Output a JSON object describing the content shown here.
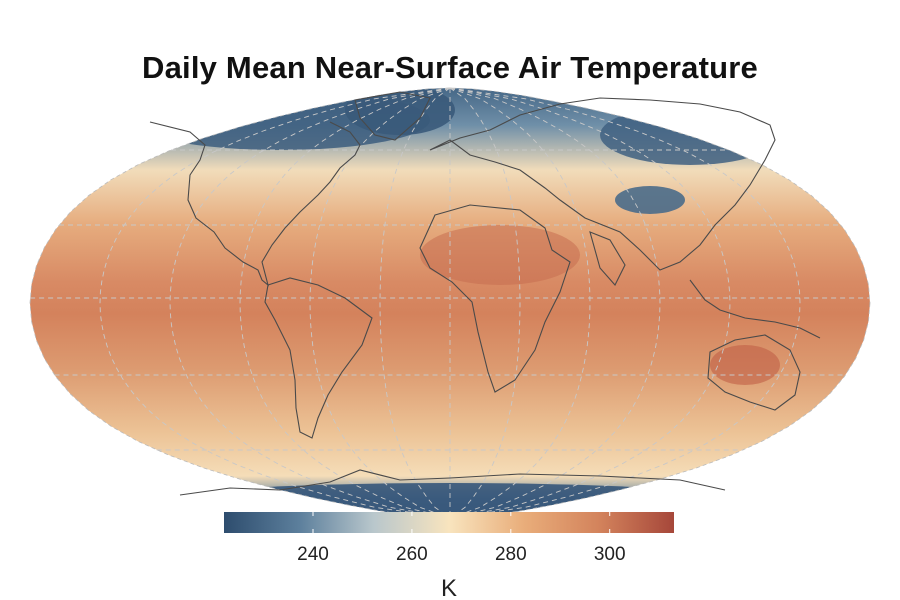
{
  "title": "Daily Mean Near-Surface Air Temperature",
  "map": {
    "projection": "robinson",
    "graticule": "dashed grey",
    "coastlines": "dark grey"
  },
  "colorbar": {
    "unit": "K",
    "ticks": [
      240,
      260,
      280,
      300
    ],
    "range": [
      222,
      313
    ],
    "colors": [
      "#2e4d6e",
      "#5c7f9c",
      "#b9c7cc",
      "#f8e4be",
      "#e9ad7a",
      "#d3835c",
      "#a6473a"
    ]
  }
}
